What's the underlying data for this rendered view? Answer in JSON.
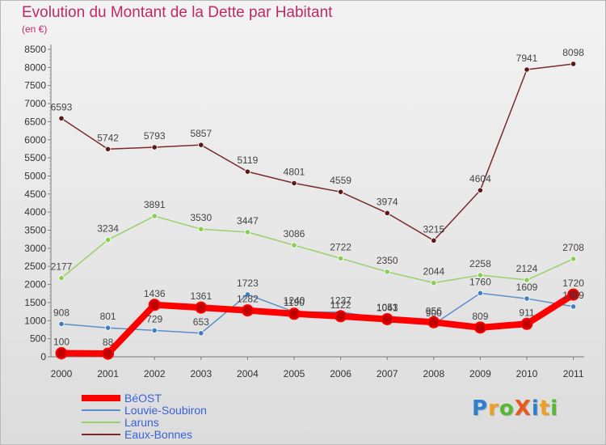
{
  "header": {
    "title": "Evolution du Montant de la Dette par Habitant",
    "subtitle": "(en €)"
  },
  "logo": {
    "text": "ProXiti",
    "letters": [
      {
        "ch": "P",
        "color": "#2f7fd0"
      },
      {
        "ch": "r",
        "color": "#f0a020"
      },
      {
        "ch": "o",
        "color": "#58b830"
      },
      {
        "ch": "X",
        "color": "#e85a1a"
      },
      {
        "ch": "i",
        "color": "#2f7fd0"
      },
      {
        "ch": "t",
        "color": "#f0a020"
      },
      {
        "ch": "i",
        "color": "#58b830"
      }
    ]
  },
  "chart_data": {
    "type": "line",
    "title": "Evolution du Montant de la Dette par Habitant",
    "subtitle": "(en €)",
    "x": [
      "2000",
      "2001",
      "2002",
      "2003",
      "2004",
      "2005",
      "2006",
      "2007",
      "2008",
      "2009",
      "2010",
      "2011"
    ],
    "ylim": [
      0,
      8500
    ],
    "yticks": [
      0,
      500,
      1000,
      1500,
      2000,
      2500,
      3000,
      3500,
      4000,
      4500,
      5000,
      5500,
      6000,
      6500,
      7000,
      7500,
      8000,
      8500
    ],
    "grid": false,
    "legend_position": "bottom-left",
    "series": [
      {
        "name": "BéOST",
        "color": "#ff0000",
        "marker": "#c00000",
        "emphasis": true,
        "values": [
          100,
          88,
          1436,
          1361,
          1282,
          1190,
          1122,
          1041,
          956,
          809,
          911,
          1720
        ]
      },
      {
        "name": "Louvie-Soubiron",
        "color": "#5b8fc8",
        "marker": "#3f7fc0",
        "emphasis": false,
        "values": [
          908,
          801,
          729,
          653,
          1723,
          1240,
          1237,
          1053,
          900,
          1760,
          1609,
          1389
        ]
      },
      {
        "name": "Laruns",
        "color": "#9ad06a",
        "marker": "#86cf52",
        "emphasis": false,
        "values": [
          2177,
          3234,
          3891,
          3530,
          3447,
          3086,
          2722,
          2350,
          2044,
          2258,
          2124,
          2708
        ]
      },
      {
        "name": "Eaux-Bonnes",
        "color": "#7a2a2a",
        "marker": "#5a1818",
        "emphasis": false,
        "values": [
          6593,
          5742,
          5793,
          5857,
          5119,
          4801,
          4559,
          3974,
          3215,
          4604,
          7941,
          8098
        ]
      }
    ]
  }
}
